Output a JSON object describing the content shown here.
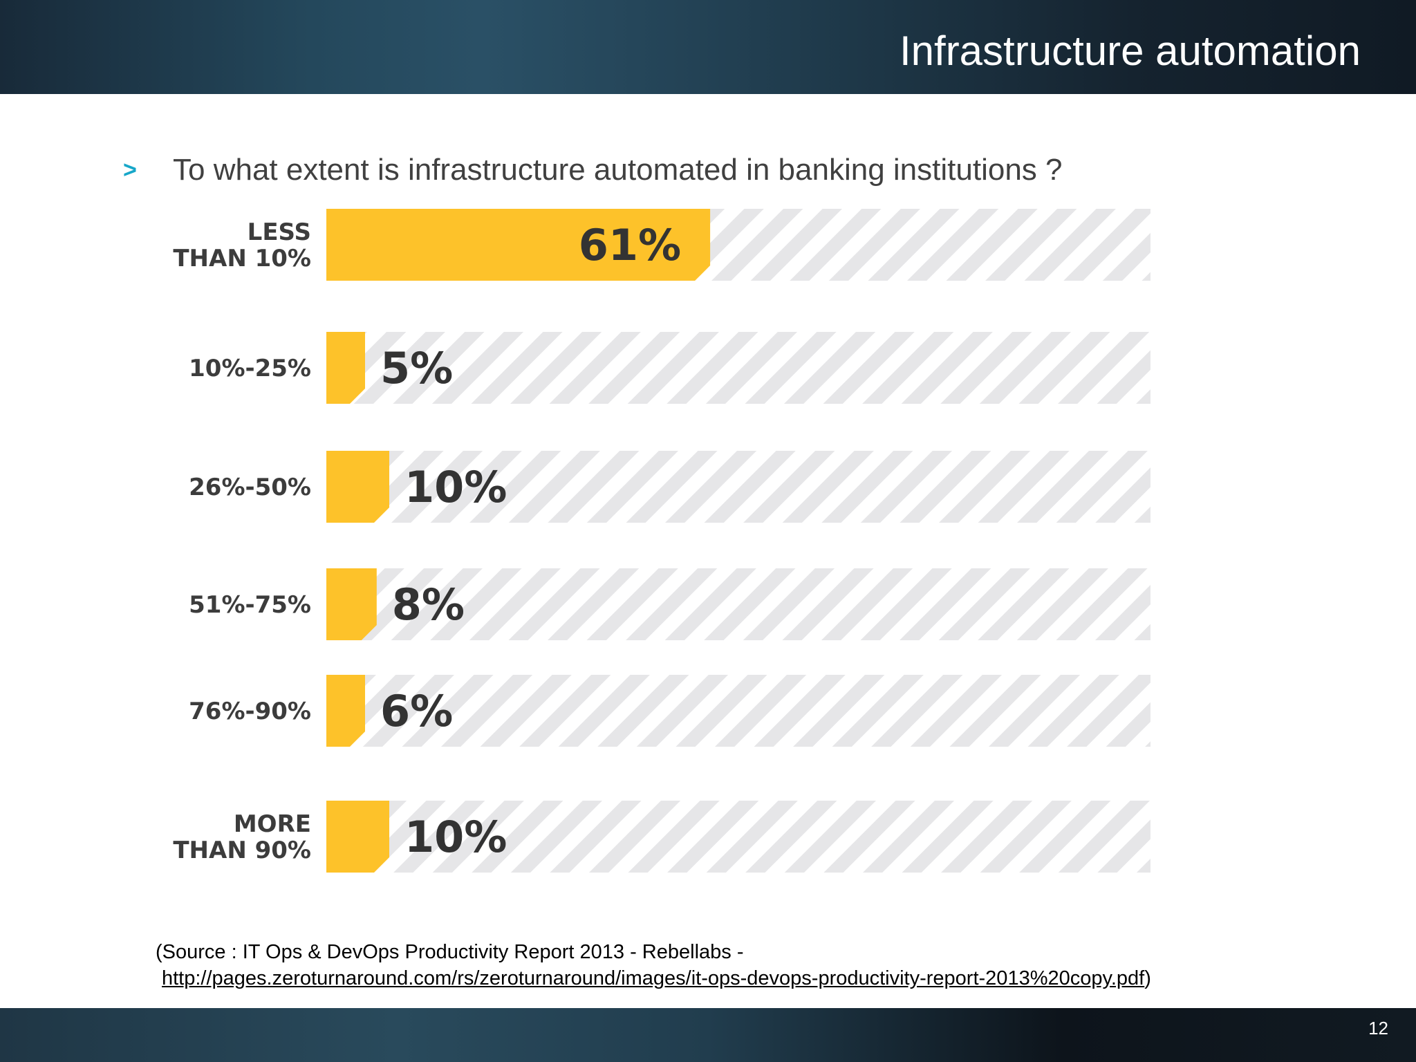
{
  "slide": {
    "title": "Infrastructure automation",
    "bullet_marker": ">",
    "question": "To what extent is infrastructure automated in banking institutions ?",
    "source_prefix": "(Source : IT Ops & DevOps Productivity Report 2013 - Rebellabs -",
    "source_url": "http://pages.zeroturnaround.com/rs/zeroturnaround/images/it-ops-devops-productivity-report-2013%20copy.pdf",
    "source_suffix": ")",
    "page_number": "12"
  },
  "chart_data": {
    "type": "bar",
    "orientation": "horizontal",
    "title": "",
    "xlabel": "",
    "ylabel": "",
    "xlim": [
      0,
      100
    ],
    "grid": false,
    "legend": "none",
    "bar_color": "#fdc22a",
    "track_color": "#e6e6e8",
    "categories": [
      [
        "LESS",
        "THAN 10%"
      ],
      [
        "10%-25%"
      ],
      [
        "26%-50%"
      ],
      [
        "51%-75%"
      ],
      [
        "76%-90%"
      ],
      [
        "MORE",
        "THAN 90%"
      ]
    ],
    "values": [
      61,
      5,
      10,
      8,
      6,
      10
    ],
    "value_labels": [
      "61%",
      "5%",
      "10%",
      "8%",
      "6%",
      "10%"
    ]
  }
}
